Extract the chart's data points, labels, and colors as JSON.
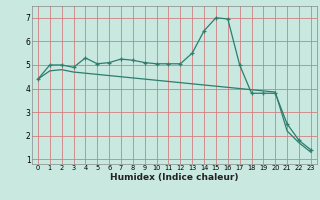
{
  "line1_x": [
    0,
    1,
    2,
    3,
    4,
    5,
    6,
    7,
    8,
    9,
    10,
    11,
    12,
    13,
    14,
    15,
    16,
    17,
    18,
    19,
    20,
    21,
    22,
    23
  ],
  "line1_y": [
    4.4,
    5.0,
    5.0,
    4.9,
    5.3,
    5.05,
    5.1,
    5.25,
    5.2,
    5.1,
    5.05,
    5.05,
    5.05,
    5.5,
    6.45,
    7.0,
    6.95,
    5.0,
    3.8,
    3.8,
    3.8,
    2.5,
    1.8,
    1.4
  ],
  "line2_x": [
    0,
    1,
    2,
    3,
    4,
    5,
    6,
    7,
    8,
    9,
    10,
    11,
    12,
    13,
    14,
    15,
    16,
    17,
    18,
    19,
    20,
    21,
    22,
    23
  ],
  "line2_y": [
    4.4,
    4.75,
    4.8,
    4.7,
    4.65,
    4.6,
    4.55,
    4.5,
    4.45,
    4.4,
    4.35,
    4.3,
    4.25,
    4.2,
    4.15,
    4.1,
    4.05,
    4.0,
    3.95,
    3.9,
    3.85,
    2.2,
    1.7,
    1.3
  ],
  "line_color": "#2e7d6e",
  "bg_color": "#c8e8e0",
  "grid_color": "#d08080",
  "xlabel": "Humidex (Indice chaleur)",
  "xlim": [
    -0.5,
    23.5
  ],
  "ylim": [
    0.8,
    7.5
  ],
  "yticks": [
    1,
    2,
    3,
    4,
    5,
    6,
    7
  ],
  "xticks": [
    0,
    1,
    2,
    3,
    4,
    5,
    6,
    7,
    8,
    9,
    10,
    11,
    12,
    13,
    14,
    15,
    16,
    17,
    18,
    19,
    20,
    21,
    22,
    23
  ]
}
